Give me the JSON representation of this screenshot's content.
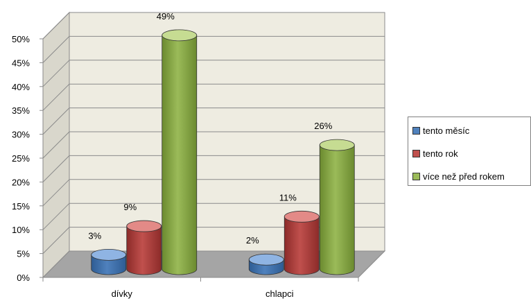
{
  "chart_data": {
    "type": "bar",
    "categories": [
      "dívky",
      "chlapci"
    ],
    "series": [
      {
        "name": "tento měsíc",
        "values": [
          3,
          2
        ],
        "labels": [
          "3%",
          "2%"
        ],
        "color": "#4f81bd",
        "dark": "#2e5c93",
        "light": "#8fb4e3"
      },
      {
        "name": "tento rok",
        "values": [
          9,
          11
        ],
        "labels": [
          "9%",
          "11%"
        ],
        "color": "#c0504d",
        "dark": "#8c2b29",
        "light": "#e38a87"
      },
      {
        "name": "více než před rokem",
        "values": [
          49,
          26
        ],
        "labels": [
          "49%",
          "26%"
        ],
        "color": "#9bbb59",
        "dark": "#6b8a2f",
        "light": "#c6dc92"
      }
    ],
    "ylim": [
      0,
      50
    ],
    "yticks": [
      "0%",
      "5%",
      "10%",
      "15%",
      "20%",
      "25%",
      "30%",
      "35%",
      "40%",
      "45%",
      "50%"
    ],
    "grid": true,
    "legend_position": "right",
    "wall_color": "#eeece1",
    "floor_color": "#a5a5a5"
  }
}
